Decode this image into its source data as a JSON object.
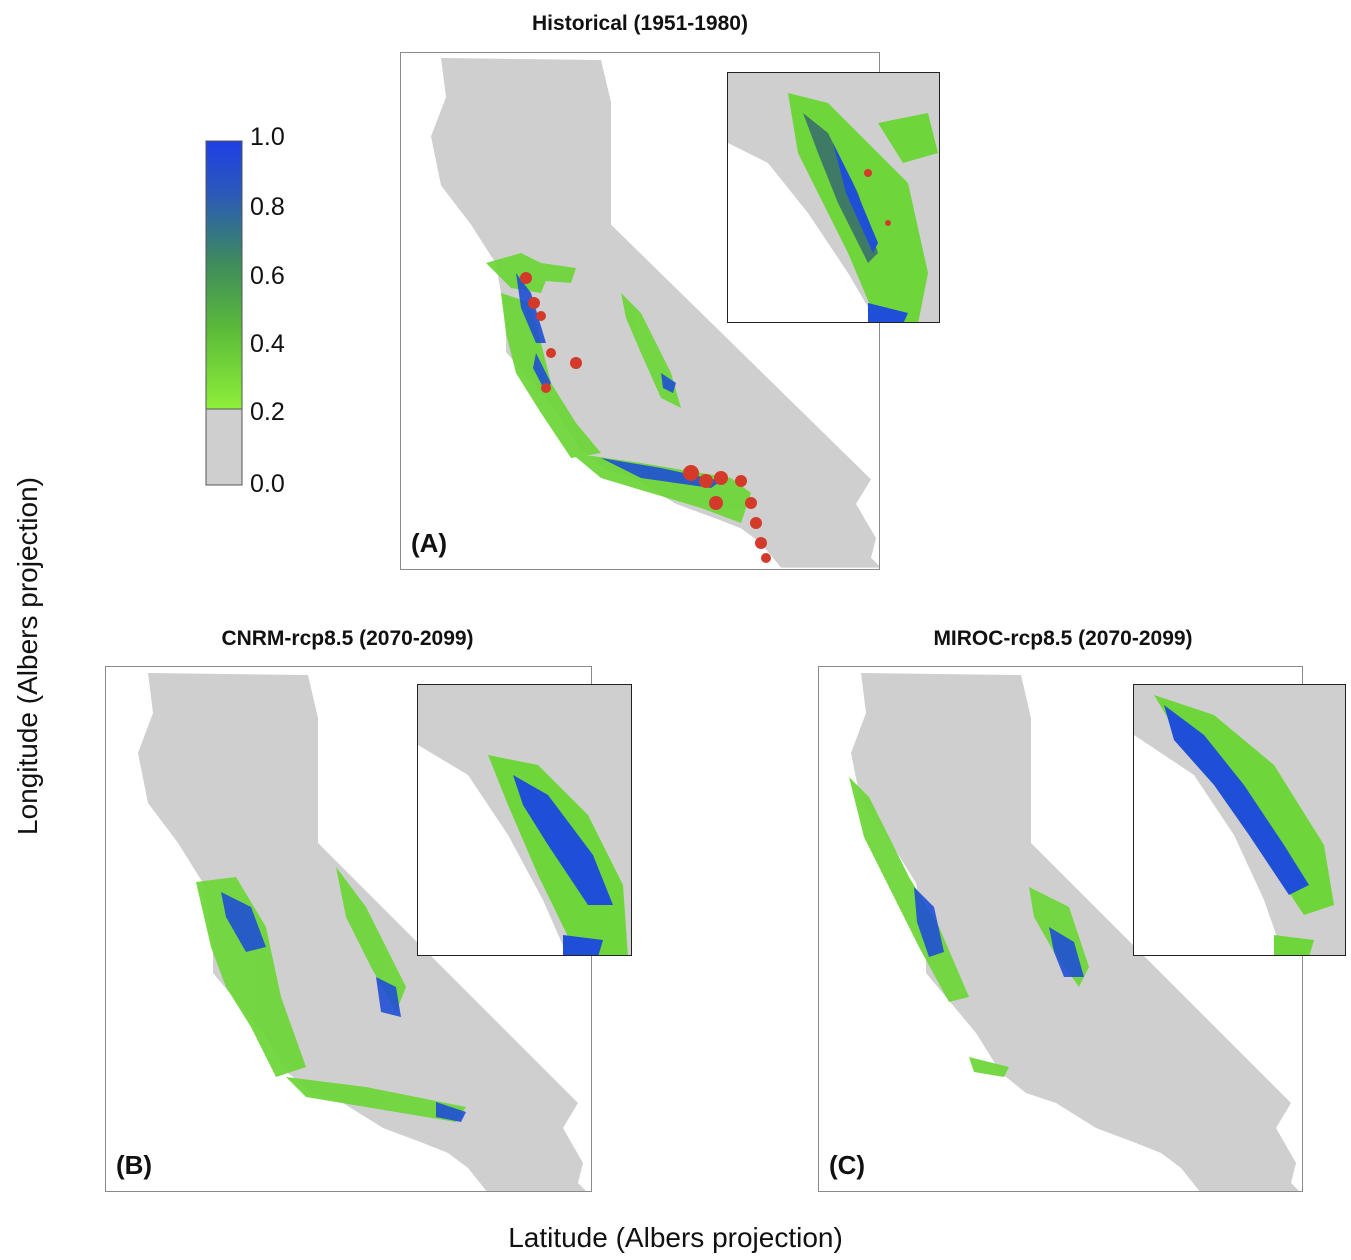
{
  "panels": [
    {
      "title": "Historical (1951-1980)",
      "label": "(A)"
    },
    {
      "title": "CNRM-rcp8.5 (2070-2099)",
      "label": "(B)"
    },
    {
      "title": "MIROC-rcp8.5 (2070-2099)",
      "label": "(C)"
    }
  ],
  "legend": {
    "ticks": [
      "1.0",
      "0.8",
      "0.6",
      "0.4",
      "0.2",
      "0.0"
    ],
    "colors": {
      "background": "#cfcfcf",
      "low": "#8fef3a",
      "mid": "#3e8a5e",
      "high": "#1f3fe6",
      "occurrence": "#d43a2a"
    }
  },
  "axes": {
    "x_label": "Latitude (Albers projection)",
    "y_label": "Longitude (Albers projection)"
  }
}
